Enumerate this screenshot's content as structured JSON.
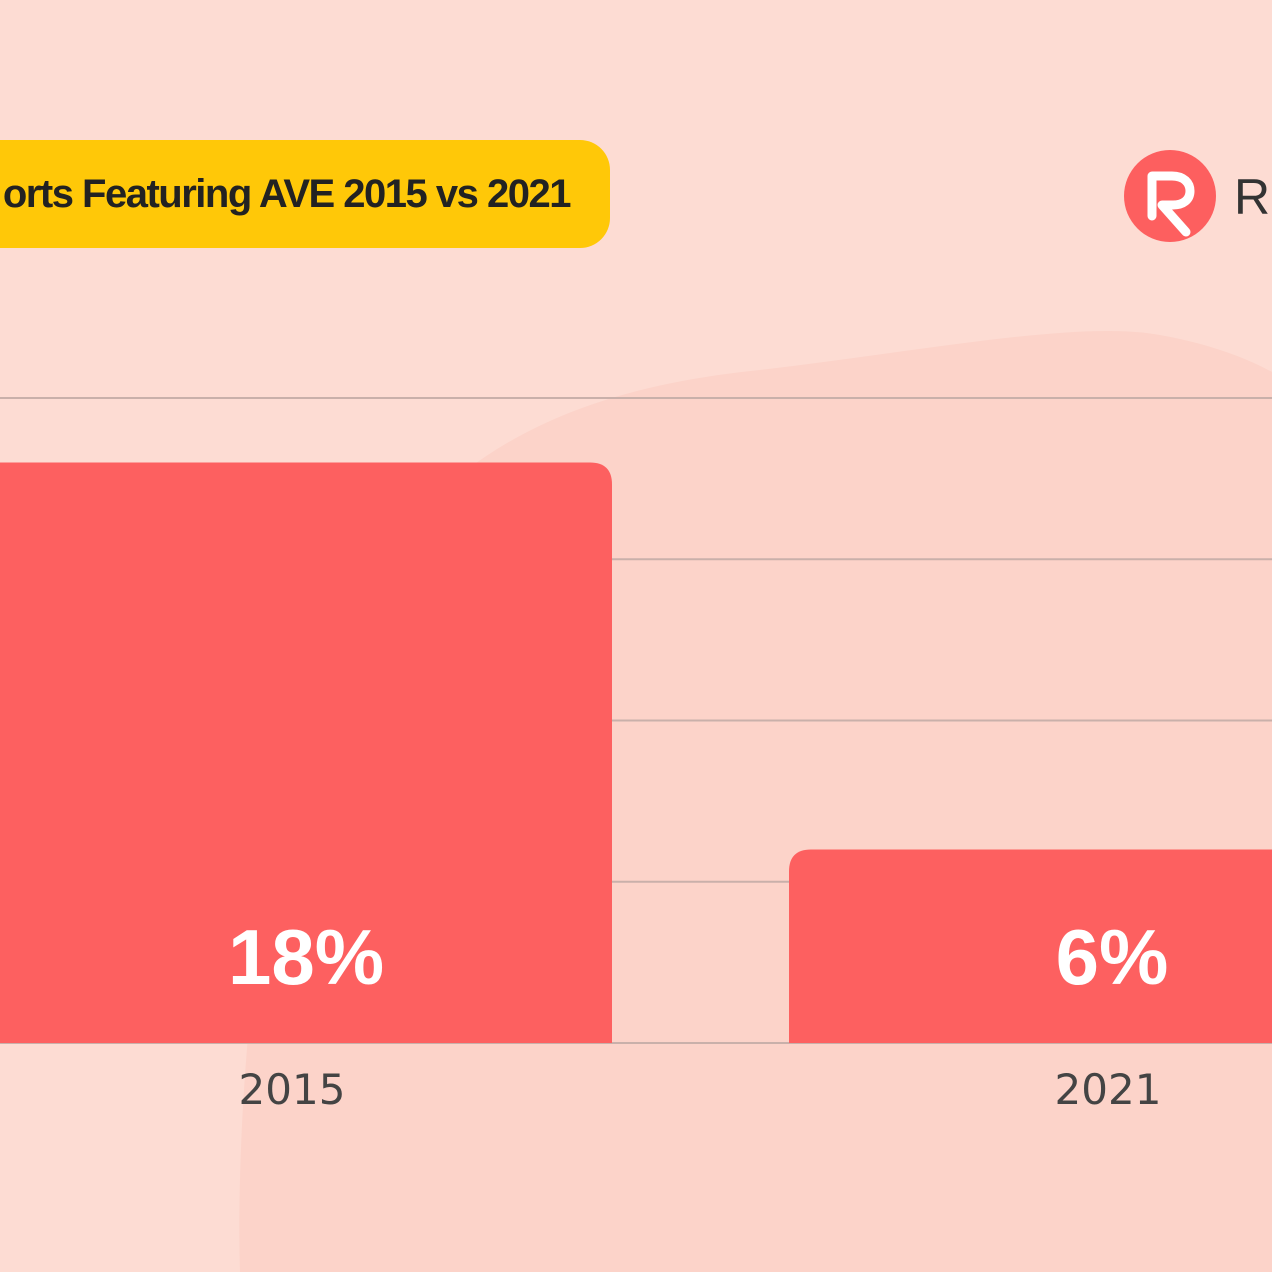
{
  "chart_data": {
    "type": "bar",
    "title": "orts Featuring AVE 2015 vs 2021",
    "categories": [
      "2015",
      "2021"
    ],
    "values": [
      18,
      6
    ],
    "value_labels": [
      "18%",
      "6%"
    ],
    "ylim": [
      0,
      20
    ],
    "grid": true
  },
  "logo": {
    "text": "Re"
  },
  "colors": {
    "background": "#fddcd3",
    "bar": "#fd6060",
    "title_pill": "#ffc808",
    "logo": "#fd5f5f"
  }
}
